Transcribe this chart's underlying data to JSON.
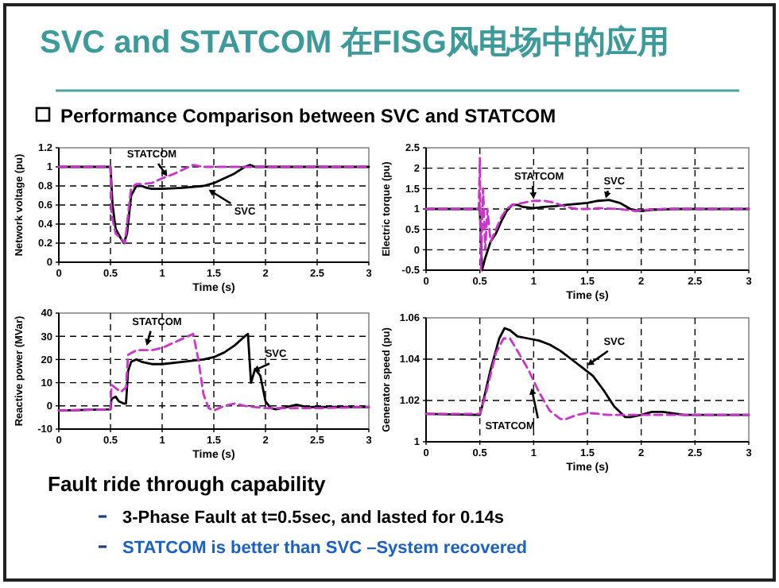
{
  "chart_data": [
    {
      "type": "line",
      "title": "SVC and STATCOM 在FISG风电场中的应用",
      "subtitle": "Performance Comparison between SVC and STATCOM",
      "xlabel": "Time (s)",
      "ylabel": "Network voltage (pu)",
      "xlim": [
        0,
        3
      ],
      "ylim": [
        0,
        1.2
      ],
      "xticks": [
        0,
        0.5,
        1,
        1.5,
        2,
        2.5,
        3
      ],
      "yticks": [
        0,
        0.2,
        0.4,
        0.6,
        0.8,
        1,
        1.2
      ],
      "grid": true,
      "legend": false,
      "series": [
        {
          "name": "SVC",
          "color": "#000000",
          "line_style": "solid",
          "x": [
            0,
            0.5,
            0.52,
            0.55,
            0.6,
            0.63,
            0.66,
            0.7,
            0.75,
            0.8,
            0.85,
            0.9,
            1.0,
            1.2,
            1.4,
            1.5,
            1.6,
            1.7,
            1.8,
            1.85,
            1.9,
            3
          ],
          "values": [
            1,
            1,
            0.6,
            0.35,
            0.25,
            0.2,
            0.3,
            0.7,
            0.8,
            0.8,
            0.78,
            0.77,
            0.77,
            0.78,
            0.8,
            0.83,
            0.88,
            0.93,
            1.0,
            1.02,
            1.0,
            1
          ]
        },
        {
          "name": "STATCOM",
          "color": "#cc33cc",
          "line_style": "dashed",
          "x": [
            0,
            0.5,
            0.51,
            0.55,
            0.6,
            0.64,
            0.67,
            0.7,
            0.75,
            0.8,
            0.9,
            1.0,
            1.05,
            1.1,
            1.2,
            1.3,
            1.4,
            3
          ],
          "values": [
            1,
            1,
            0.5,
            0.3,
            0.25,
            0.2,
            0.5,
            0.78,
            0.82,
            0.82,
            0.83,
            0.88,
            0.9,
            0.92,
            0.97,
            1.02,
            1.0,
            1
          ]
        }
      ]
    },
    {
      "type": "line",
      "xlabel": "Time (s)",
      "ylabel": "Electric torque (pu)",
      "xlim": [
        0,
        3
      ],
      "ylim": [
        -0.5,
        2.5
      ],
      "xticks": [
        0,
        0.5,
        1,
        1.5,
        2,
        2.5,
        3
      ],
      "yticks": [
        -0.5,
        0,
        0.5,
        1,
        1.5,
        2,
        2.5
      ],
      "grid": true,
      "legend": false,
      "series": [
        {
          "name": "SVC",
          "color": "#000000",
          "line_style": "solid",
          "x": [
            0,
            0.5,
            0.52,
            0.55,
            0.6,
            0.65,
            0.7,
            0.75,
            0.8,
            0.85,
            0.9,
            1.0,
            1.1,
            1.2,
            1.3,
            1.5,
            1.6,
            1.7,
            1.8,
            1.9,
            1.95,
            2.0,
            2.1,
            2.3,
            3
          ],
          "values": [
            1,
            1,
            -0.5,
            -0.2,
            0.2,
            0.4,
            0.7,
            0.95,
            1.1,
            1.1,
            1.05,
            1.02,
            1.05,
            1.07,
            1.1,
            1.15,
            1.2,
            1.22,
            1.15,
            1.0,
            0.97,
            0.95,
            0.98,
            1.0,
            1
          ]
        },
        {
          "name": "STATCOM",
          "color": "#cc33cc",
          "line_style": "dashed",
          "x": [
            0,
            0.49,
            0.5,
            0.51,
            0.53,
            0.55,
            0.57,
            0.6,
            0.65,
            0.7,
            0.75,
            0.8,
            0.9,
            1.0,
            1.1,
            1.2,
            1.3,
            1.4,
            1.5,
            1.6,
            1.8,
            1.95,
            2.0,
            2.2,
            3
          ],
          "values": [
            1,
            1,
            2.25,
            -0.5,
            1.5,
            0.0,
            1.0,
            0.2,
            0.5,
            0.8,
            1.0,
            1.1,
            1.15,
            1.2,
            1.2,
            1.15,
            1.05,
            1.0,
            1.0,
            1.02,
            1.0,
            0.95,
            0.97,
            1.0,
            1
          ]
        }
      ]
    },
    {
      "type": "line",
      "xlabel": "Time (s)",
      "ylabel": "Reactive power (MVar)",
      "xlim": [
        0,
        3
      ],
      "ylim": [
        -10,
        40
      ],
      "xticks": [
        0,
        0.5,
        1,
        1.5,
        2,
        2.5,
        3
      ],
      "yticks": [
        -10,
        0,
        10,
        20,
        30,
        40
      ],
      "grid": true,
      "legend": false,
      "series": [
        {
          "name": "SVC",
          "color": "#000000",
          "line_style": "solid",
          "x": [
            0,
            0.5,
            0.51,
            0.55,
            0.58,
            0.63,
            0.65,
            0.67,
            0.7,
            0.75,
            0.8,
            0.9,
            1.0,
            1.2,
            1.4,
            1.5,
            1.6,
            1.7,
            1.8,
            1.83,
            1.86,
            1.9,
            1.95,
            2.0,
            2.05,
            2.1,
            2.2,
            2.3,
            2.4,
            2.6,
            3
          ],
          "values": [
            -2,
            -1.5,
            3,
            4,
            2,
            1,
            1,
            15,
            19,
            20,
            19,
            18,
            18,
            19,
            20,
            21,
            23,
            26,
            30,
            31,
            10,
            16,
            13,
            2,
            -1,
            -1.5,
            -0.5,
            0.5,
            -0.5,
            -0.5,
            -0.5
          ]
        },
        {
          "name": "STATCOM",
          "color": "#cc33cc",
          "line_style": "dashed",
          "x": [
            0,
            0.5,
            0.51,
            0.6,
            0.65,
            0.67,
            0.75,
            0.9,
            1.0,
            1.1,
            1.2,
            1.3,
            1.35,
            1.4,
            1.45,
            1.5,
            1.6,
            1.7,
            1.8,
            2.0,
            2.5,
            3
          ],
          "values": [
            -2,
            -1.5,
            9,
            6,
            8,
            22,
            24,
            24,
            25,
            27,
            29,
            31,
            20,
            5,
            -1,
            -2,
            0,
            1,
            0,
            -1,
            -1,
            -0.5
          ]
        }
      ]
    },
    {
      "type": "line",
      "xlabel": "Time (s)",
      "ylabel": "Generator speed (pu)",
      "xlim": [
        0,
        3
      ],
      "ylim": [
        1,
        1.06
      ],
      "xticks": [
        0,
        0.5,
        1,
        1.5,
        2,
        2.5,
        3
      ],
      "yticks": [
        1,
        1.02,
        1.04,
        1.06
      ],
      "grid": true,
      "legend": false,
      "series": [
        {
          "name": "SVC",
          "color": "#000000",
          "line_style": "solid",
          "x": [
            0,
            0.5,
            0.52,
            0.6,
            0.68,
            0.73,
            0.78,
            0.85,
            0.95,
            1.05,
            1.15,
            1.25,
            1.35,
            1.45,
            1.55,
            1.65,
            1.75,
            1.85,
            1.9,
            2.0,
            2.1,
            2.2,
            2.4,
            3
          ],
          "values": [
            1.0135,
            1.013,
            1.017,
            1.035,
            1.05,
            1.055,
            1.054,
            1.051,
            1.05,
            1.049,
            1.047,
            1.044,
            1.04,
            1.036,
            1.032,
            1.025,
            1.017,
            1.012,
            1.012,
            1.013,
            1.0145,
            1.0145,
            1.013,
            1.013
          ]
        },
        {
          "name": "STATCOM",
          "color": "#cc33cc",
          "line_style": "dashed",
          "x": [
            0,
            0.5,
            0.55,
            0.65,
            0.72,
            0.78,
            0.85,
            0.95,
            1.05,
            1.15,
            1.25,
            1.3,
            1.4,
            1.5,
            1.7,
            3
          ],
          "values": [
            1.0135,
            1.0135,
            1.022,
            1.043,
            1.05,
            1.05,
            1.044,
            1.035,
            1.024,
            1.015,
            1.011,
            1.011,
            1.013,
            1.014,
            1.013,
            1.013
          ]
        }
      ],
      "annotations": [
        "Fault ride through capability",
        "3-Phase Fault at t=0.5sec, and lasted for 0.14s",
        "STATCOM is better than SVC –System recovered"
      ]
    }
  ]
}
